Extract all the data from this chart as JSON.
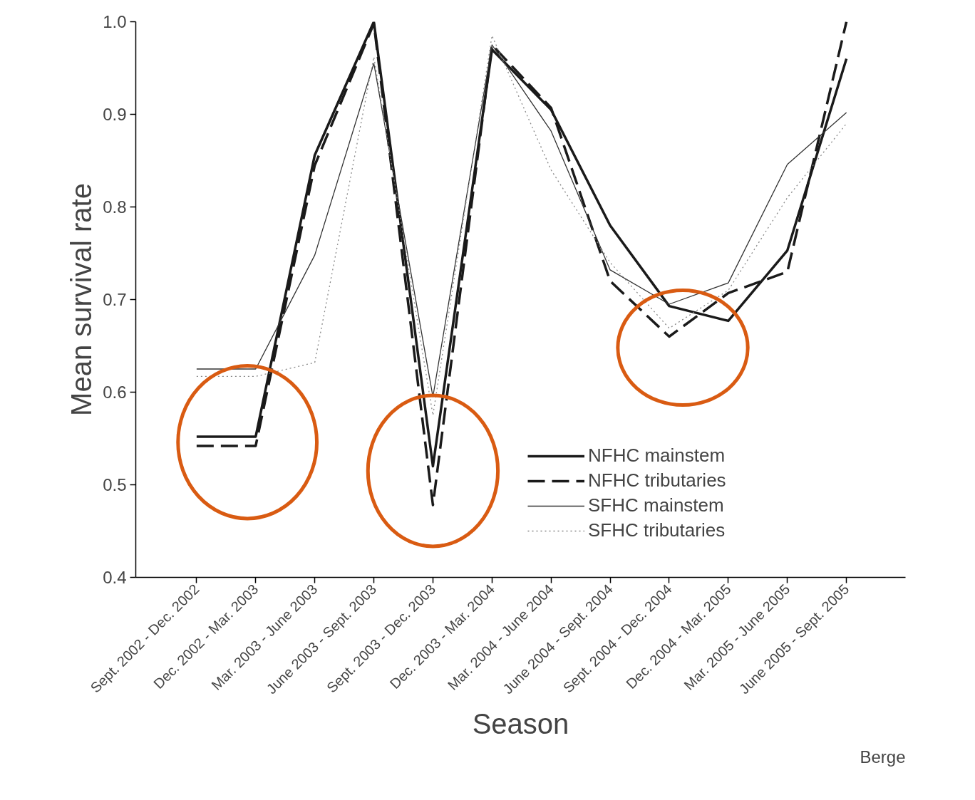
{
  "chart_data": {
    "type": "line",
    "xlabel": "Season",
    "ylabel": "Mean survival rate",
    "categories": [
      "Sept. 2002 - Dec. 2002",
      "Dec. 2002 - Mar. 2003",
      "Mar. 2003 - June 2003",
      "June 2003 - Sept. 2003",
      "Sept. 2003 - Dec. 2003",
      "Dec. 2003 - Mar. 2004",
      "Mar. 2004 - June 2004",
      "June 2004 - Sept. 2004",
      "Sept. 2004 - Dec. 2004",
      "Dec. 2004 - Mar. 2005",
      "Mar. 2005 - June 2005",
      "June 2005 - Sept. 2005"
    ],
    "series": [
      {
        "name": "NFHC mainstem",
        "color": "#1a1a1a",
        "line_style": "solid",
        "values": [
          0.552,
          0.552,
          0.856,
          1.0,
          0.52,
          0.97,
          0.905,
          0.78,
          0.693,
          0.677,
          0.753,
          0.96
        ]
      },
      {
        "name": "NFHC tributaries",
        "color": "#1a1a1a",
        "line_style": "dashed",
        "values": [
          0.542,
          0.542,
          0.845,
          0.998,
          0.478,
          0.975,
          0.907,
          0.72,
          0.66,
          0.707,
          0.73,
          1.0
        ]
      },
      {
        "name": "SFHC mainstem",
        "color": "#333333",
        "line_style": "solid",
        "values": [
          0.625,
          0.625,
          0.748,
          0.955,
          0.595,
          0.975,
          0.882,
          0.732,
          0.695,
          0.718,
          0.846,
          0.902
        ]
      },
      {
        "name": "SFHC tributaries",
        "color": "#888888",
        "line_style": "dotted",
        "values": [
          0.617,
          0.617,
          0.632,
          0.962,
          0.575,
          0.985,
          0.84,
          0.74,
          0.669,
          0.71,
          0.81,
          0.89
        ]
      }
    ],
    "ylim": [
      0.4,
      1.0
    ],
    "yticks": [
      {
        "value": 0.4,
        "label": "0.4"
      },
      {
        "value": 0.5,
        "label": "0.5"
      },
      {
        "value": 0.6,
        "label": "0.6"
      },
      {
        "value": 0.7,
        "label": "0.7"
      },
      {
        "value": 0.8,
        "label": "0.8"
      },
      {
        "value": 0.9,
        "label": "0.9"
      },
      {
        "value": 1.0,
        "label": "1.0"
      }
    ],
    "grid": false,
    "legend": "bottom right",
    "marker": "none",
    "annotations": [
      "Berge"
    ]
  }
}
